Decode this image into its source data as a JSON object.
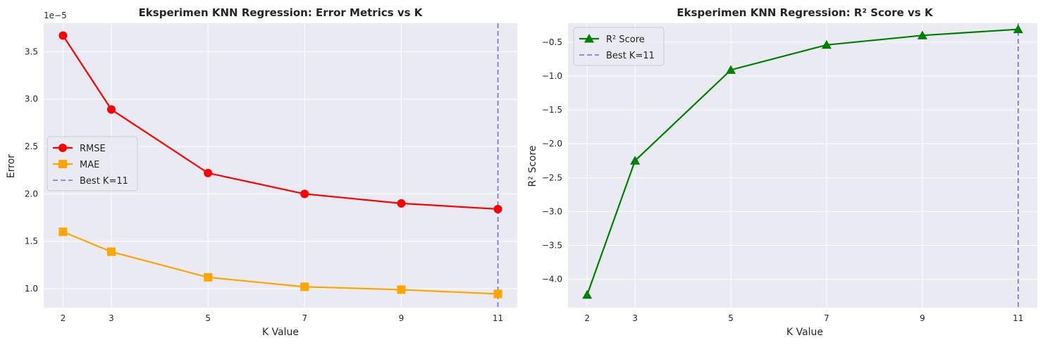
{
  "chart_data": [
    {
      "type": "line",
      "title": "Eksperimen KNN Regression: Error Metrics vs K",
      "xlabel": "K Value",
      "ylabel": "Error",
      "offset_text": "1e−5",
      "x": [
        2,
        3,
        5,
        7,
        9,
        11
      ],
      "x_ticks": [
        "2",
        "3",
        "5",
        "7",
        "9",
        "11"
      ],
      "xlim": [
        1.6,
        11.4
      ],
      "y_ticks": [
        "1.0",
        "1.5",
        "2.0",
        "2.5",
        "3.0",
        "3.5"
      ],
      "y_tick_values": [
        1.0,
        1.5,
        2.0,
        2.5,
        3.0,
        3.5
      ],
      "ylim": [
        0.8,
        3.8
      ],
      "y_scale": "x1e-5",
      "grid": true,
      "legend_position": "center-left",
      "series": [
        {
          "name": "RMSE",
          "values": [
            3.67,
            2.89,
            2.22,
            2.0,
            1.9,
            1.84
          ],
          "color": "#ff0000",
          "marker": "circle"
        },
        {
          "name": "MAE",
          "values": [
            1.6,
            1.39,
            1.12,
            1.02,
            0.99,
            0.945
          ],
          "color": "#ffa500",
          "marker": "square"
        }
      ],
      "vline": {
        "x": 11,
        "label": "Best K=11",
        "color": "#6b6bff"
      }
    },
    {
      "type": "line",
      "title": "Eksperimen KNN Regression: R² Score vs K",
      "xlabel": "K Value",
      "ylabel": "R² Score",
      "x": [
        2,
        3,
        5,
        7,
        9,
        11
      ],
      "x_ticks": [
        "2",
        "3",
        "5",
        "7",
        "9",
        "11"
      ],
      "xlim": [
        1.6,
        11.4
      ],
      "y_ticks": [
        "−4.0",
        "−3.5",
        "−3.0",
        "−2.5",
        "−2.0",
        "−1.5",
        "−1.0",
        "−0.5"
      ],
      "y_tick_values": [
        -4.0,
        -3.5,
        -3.0,
        -2.5,
        -2.0,
        -1.5,
        -1.0,
        -0.5
      ],
      "ylim": [
        -4.42,
        -0.22
      ],
      "grid": true,
      "legend_position": "top-left",
      "series": [
        {
          "name": "R² Score",
          "values": [
            -4.23,
            -2.25,
            -0.91,
            -0.54,
            -0.4,
            -0.31
          ],
          "color": "#008000",
          "marker": "triangle"
        }
      ],
      "vline": {
        "x": 11,
        "label": "Best K=11",
        "color": "#6b6bff"
      }
    }
  ]
}
